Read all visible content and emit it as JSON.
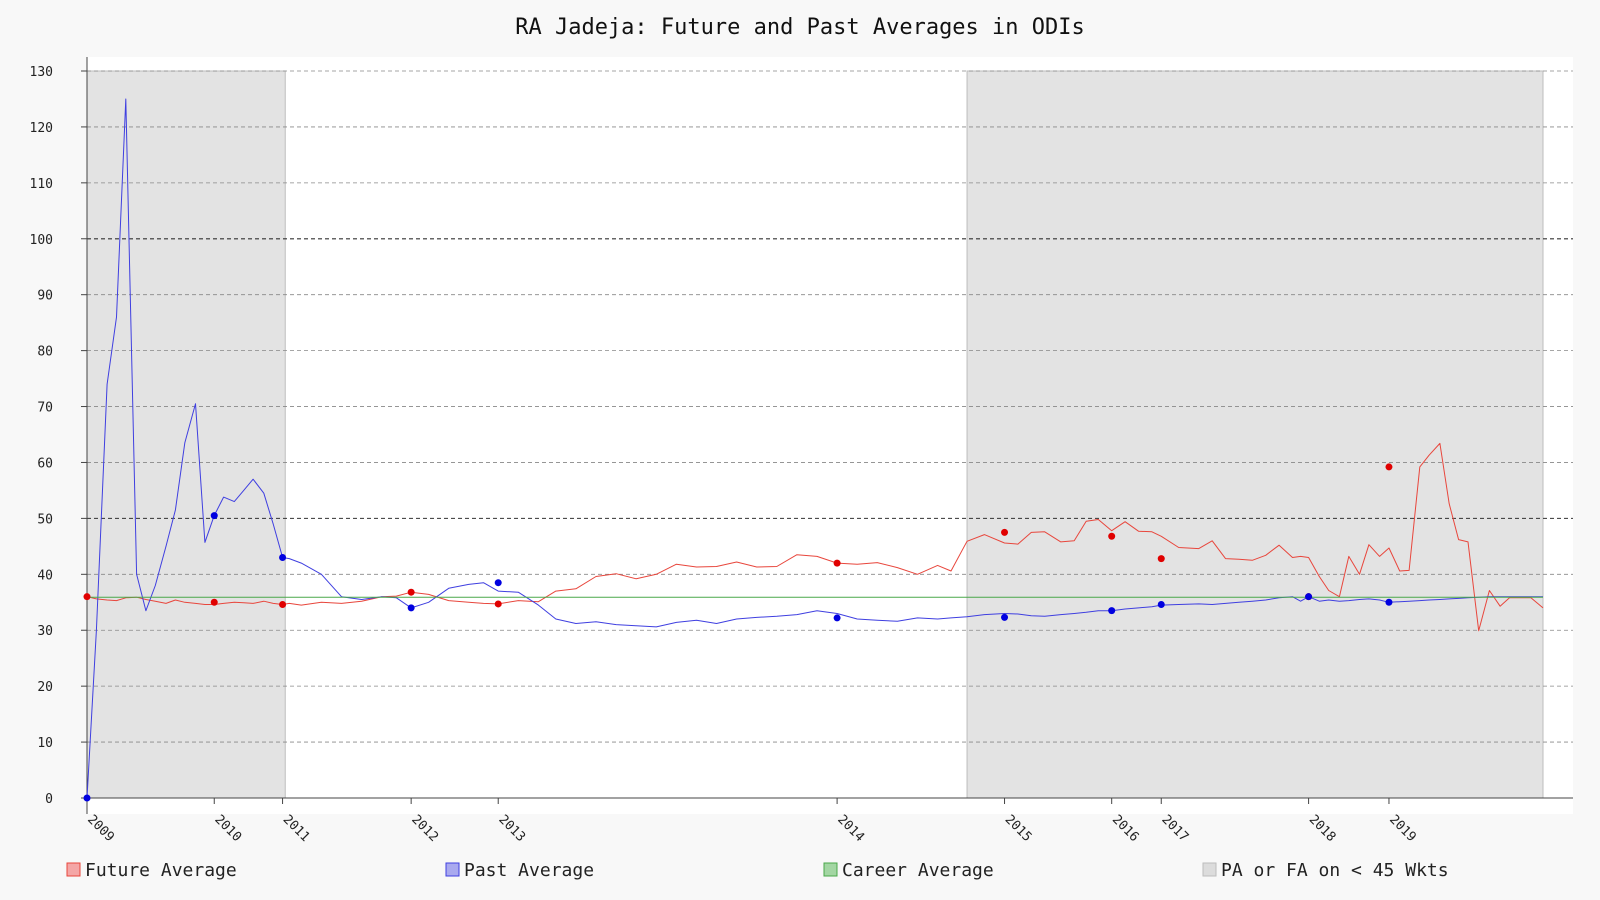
{
  "chart_data": {
    "type": "line",
    "title": "RA Jadeja: Future and Past Averages in ODIs",
    "xlabel": "",
    "ylabel": "",
    "ylim": [
      0,
      130
    ],
    "xlim": [
      2009,
      2019.87
    ],
    "yticks": [
      0,
      10,
      20,
      30,
      40,
      50,
      60,
      70,
      80,
      90,
      100,
      110,
      120,
      130
    ],
    "xticks": [
      {
        "label": "2009",
        "x": 2009.0
      },
      {
        "label": "2010",
        "x": 2009.95
      },
      {
        "label": "2011",
        "x": 2010.46
      },
      {
        "label": "2012",
        "x": 2011.42
      },
      {
        "label": "2013",
        "x": 2012.07
      },
      {
        "label": "2014",
        "x": 2014.6
      },
      {
        "label": "2015",
        "x": 2015.85
      },
      {
        "label": "2016",
        "x": 2016.65
      },
      {
        "label": "2017",
        "x": 2017.02
      },
      {
        "label": "2018",
        "x": 2018.12
      },
      {
        "label": "2019",
        "x": 2018.72
      }
    ],
    "grid": true,
    "legend_position": "bottom",
    "reference_lines": [
      50,
      100
    ],
    "shaded_regions": [
      {
        "x0": 2009.0,
        "x1": 2010.48
      },
      {
        "x0": 2015.57,
        "x1": 2019.87
      }
    ],
    "series": [
      {
        "name": "Future Average",
        "color": "#e8463c",
        "x": [
          2009.0,
          2009.07,
          2009.15,
          2009.22,
          2009.29,
          2009.37,
          2009.44,
          2009.51,
          2009.59,
          2009.66,
          2009.73,
          2009.81,
          2009.88,
          2009.95,
          2010.02,
          2010.1,
          2010.17,
          2010.24,
          2010.32,
          2010.39,
          2010.46,
          2010.51,
          2010.6,
          2010.75,
          2010.9,
          2011.05,
          2011.2,
          2011.31,
          2011.42,
          2011.55,
          2011.7,
          2011.85,
          2011.96,
          2012.07,
          2012.22,
          2012.37,
          2012.5,
          2012.65,
          2012.8,
          2012.95,
          2013.1,
          2013.25,
          2013.4,
          2013.55,
          2013.7,
          2013.85,
          2014.0,
          2014.15,
          2014.3,
          2014.45,
          2014.6,
          2014.75,
          2014.9,
          2015.05,
          2015.2,
          2015.35,
          2015.45,
          2015.57,
          2015.7,
          2015.85,
          2015.95,
          2016.05,
          2016.15,
          2016.27,
          2016.37,
          2016.46,
          2016.55,
          2016.65,
          2016.75,
          2016.85,
          2016.95,
          2017.02,
          2017.15,
          2017.3,
          2017.4,
          2017.5,
          2017.6,
          2017.7,
          2017.8,
          2017.9,
          2018.0,
          2018.06,
          2018.12,
          2018.2,
          2018.27,
          2018.35,
          2018.42,
          2018.5,
          2018.57,
          2018.65,
          2018.72,
          2018.8,
          2018.87,
          2018.95,
          2019.02,
          2019.1,
          2019.17,
          2019.24,
          2019.31,
          2019.39,
          2019.47,
          2019.55,
          2019.62,
          2019.7,
          2019.78,
          2019.87
        ],
        "values": [
          36.0,
          35.6,
          35.4,
          35.3,
          35.8,
          35.9,
          35.5,
          35.2,
          34.8,
          35.4,
          35.0,
          34.8,
          34.6,
          34.6,
          34.8,
          35.0,
          34.9,
          34.8,
          35.2,
          34.8,
          34.6,
          34.8,
          34.5,
          35.0,
          34.8,
          35.2,
          36.0,
          36.1,
          36.8,
          36.4,
          35.3,
          35.0,
          34.8,
          34.7,
          35.3,
          35.1,
          37.0,
          37.4,
          39.6,
          40.1,
          39.2,
          40.0,
          41.8,
          41.3,
          41.4,
          42.2,
          41.3,
          41.4,
          43.5,
          43.2,
          42.0,
          41.8,
          42.1,
          41.2,
          40.0,
          41.6,
          40.6,
          45.9,
          47.1,
          45.6,
          45.4,
          47.5,
          47.6,
          45.8,
          46.0,
          49.5,
          49.8,
          47.8,
          49.4,
          47.7,
          47.6,
          46.8,
          44.8,
          44.6,
          46.0,
          42.8,
          42.7,
          42.5,
          43.4,
          45.2,
          43.0,
          43.2,
          43.0,
          39.6,
          37.1,
          36.0,
          43.2,
          40.0,
          45.3,
          43.2,
          44.7,
          40.6,
          40.7,
          59.2,
          61.3,
          63.4,
          52.6,
          46.2,
          45.8,
          29.9,
          37.1,
          34.3,
          35.8,
          35.8,
          35.8,
          34.0
        ]
      },
      {
        "name": "Past Average",
        "color": "#3f3fe0",
        "x": [
          2009.0,
          2009.07,
          2009.15,
          2009.22,
          2009.29,
          2009.37,
          2009.44,
          2009.51,
          2009.59,
          2009.66,
          2009.73,
          2009.81,
          2009.88,
          2009.95,
          2010.02,
          2010.1,
          2010.17,
          2010.24,
          2010.32,
          2010.39,
          2010.46,
          2010.51,
          2010.6,
          2010.75,
          2010.9,
          2011.05,
          2011.2,
          2011.31,
          2011.42,
          2011.55,
          2011.7,
          2011.85,
          2011.96,
          2012.07,
          2012.22,
          2012.37,
          2012.5,
          2012.65,
          2012.8,
          2012.95,
          2013.1,
          2013.25,
          2013.4,
          2013.55,
          2013.7,
          2013.85,
          2014.0,
          2014.15,
          2014.3,
          2014.45,
          2014.6,
          2014.75,
          2014.9,
          2015.05,
          2015.2,
          2015.35,
          2015.45,
          2015.57,
          2015.7,
          2015.85,
          2015.95,
          2016.05,
          2016.15,
          2016.27,
          2016.37,
          2016.46,
          2016.55,
          2016.65,
          2016.75,
          2016.85,
          2016.95,
          2017.02,
          2017.15,
          2017.3,
          2017.4,
          2017.5,
          2017.6,
          2017.7,
          2017.8,
          2017.9,
          2018.0,
          2018.06,
          2018.12,
          2018.2,
          2018.27,
          2018.35,
          2018.42,
          2018.5,
          2018.57,
          2018.65,
          2018.72,
          2018.8,
          2018.87,
          2018.95,
          2019.02,
          2019.1,
          2019.17,
          2019.24,
          2019.31,
          2019.39,
          2019.47,
          2019.55,
          2019.62,
          2019.7,
          2019.78,
          2019.87
        ],
        "values": [
          0.0,
          30.0,
          74.0,
          86.0,
          125.0,
          40.0,
          33.5,
          38.0,
          45.0,
          51.5,
          63.5,
          70.5,
          45.7,
          50.5,
          53.8,
          53.0,
          55.0,
          57.0,
          54.5,
          49.0,
          43.0,
          42.8,
          42.0,
          40.0,
          36.0,
          35.5,
          36.0,
          35.8,
          34.0,
          35.0,
          37.5,
          38.2,
          38.5,
          37.0,
          36.8,
          34.5,
          32.0,
          31.2,
          31.5,
          31.0,
          30.8,
          30.6,
          31.4,
          31.8,
          31.2,
          32.0,
          32.3,
          32.5,
          32.8,
          33.5,
          33.0,
          32.0,
          31.8,
          31.6,
          32.2,
          32.0,
          32.2,
          32.4,
          32.8,
          33.0,
          32.9,
          32.6,
          32.5,
          32.8,
          33.0,
          33.2,
          33.5,
          33.5,
          33.8,
          34.0,
          34.2,
          34.5,
          34.6,
          34.7,
          34.6,
          34.8,
          35.0,
          35.2,
          35.4,
          35.8,
          36.0,
          35.2,
          36.0,
          35.2,
          35.4,
          35.2,
          35.3,
          35.5,
          35.6,
          35.4,
          35.0,
          35.1,
          35.2,
          35.3,
          35.4,
          35.5,
          35.6,
          35.7,
          35.8,
          35.9,
          36.0,
          36.0,
          36.0,
          36.0,
          36.0,
          36.0
        ]
      },
      {
        "name": "Career Average",
        "color": "#4aa84a",
        "x": [
          2009.0,
          2019.87
        ],
        "values": [
          35.9,
          35.9
        ]
      }
    ],
    "markers": {
      "future": [
        {
          "x": 2009.0,
          "y": 36.0
        },
        {
          "x": 2009.95,
          "y": 35.0
        },
        {
          "x": 2010.46,
          "y": 34.6
        },
        {
          "x": 2011.42,
          "y": 36.8
        },
        {
          "x": 2012.07,
          "y": 34.7
        },
        {
          "x": 2014.6,
          "y": 42.0
        },
        {
          "x": 2015.85,
          "y": 47.5
        },
        {
          "x": 2016.65,
          "y": 46.8
        },
        {
          "x": 2017.02,
          "y": 42.8
        },
        {
          "x": 2018.12,
          "y": 36.0
        },
        {
          "x": 2018.72,
          "y": 59.2
        }
      ],
      "past": [
        {
          "x": 2009.0,
          "y": 0.0
        },
        {
          "x": 2009.95,
          "y": 50.5
        },
        {
          "x": 2010.46,
          "y": 43.0
        },
        {
          "x": 2011.42,
          "y": 34.0
        },
        {
          "x": 2012.07,
          "y": 38.5
        },
        {
          "x": 2014.6,
          "y": 32.2
        },
        {
          "x": 2015.85,
          "y": 32.3
        },
        {
          "x": 2016.65,
          "y": 33.5
        },
        {
          "x": 2017.02,
          "y": 34.6
        },
        {
          "x": 2018.12,
          "y": 36.0
        },
        {
          "x": 2018.72,
          "y": 35.0
        }
      ]
    },
    "legend": [
      {
        "label": "Future Average",
        "fill": "#f4a6a6",
        "stroke": "#e8463c"
      },
      {
        "label": "Past Average",
        "fill": "#a9a9ef",
        "stroke": "#3f3fe0"
      },
      {
        "label": "Career Average",
        "fill": "#a3d6a3",
        "stroke": "#4aa84a"
      },
      {
        "label": "PA or FA on < 45 Wkts",
        "fill": "#dcdcdc",
        "stroke": "#bdbdbd"
      }
    ]
  }
}
